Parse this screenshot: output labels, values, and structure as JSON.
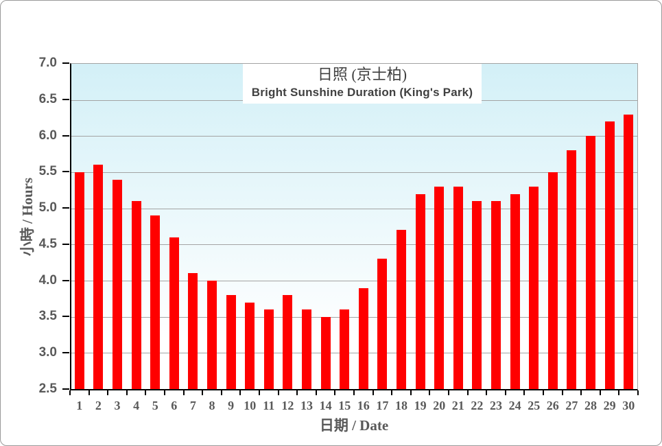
{
  "chart_data": {
    "type": "bar",
    "title_zh": "日照 (京士柏)",
    "title_en": "Bright Sunshine  Duration (King's Park)",
    "xlabel": "日期 / Date",
    "ylabel": "小時 / Hours",
    "categories": [
      "1",
      "2",
      "3",
      "4",
      "5",
      "6",
      "7",
      "8",
      "9",
      "10",
      "11",
      "12",
      "13",
      "14",
      "15",
      "16",
      "17",
      "18",
      "19",
      "20",
      "21",
      "22",
      "23",
      "24",
      "25",
      "26",
      "27",
      "28",
      "29",
      "30"
    ],
    "values": [
      5.5,
      5.6,
      5.4,
      5.1,
      4.9,
      4.6,
      4.1,
      4.0,
      3.8,
      3.7,
      3.6,
      3.8,
      3.6,
      3.5,
      3.6,
      3.9,
      4.3,
      4.7,
      5.2,
      5.3,
      5.3,
      5.1,
      5.1,
      5.2,
      5.3,
      5.5,
      5.8,
      6.0,
      6.2,
      6.3
    ],
    "ylim": [
      2.5,
      7.0
    ],
    "ytick_step": 0.5,
    "ytick_decimals": 1,
    "grid": true,
    "legend_position": "none",
    "colors": {
      "bar": "#ff0000",
      "plot_bg_top": "#d3f0f7",
      "plot_bg_bottom": "#ffffff",
      "gridline": "#a3a3a3",
      "axis": "#000000",
      "tick_label": "#595959",
      "title_text": "#404040",
      "frame_border": "#999999"
    }
  }
}
